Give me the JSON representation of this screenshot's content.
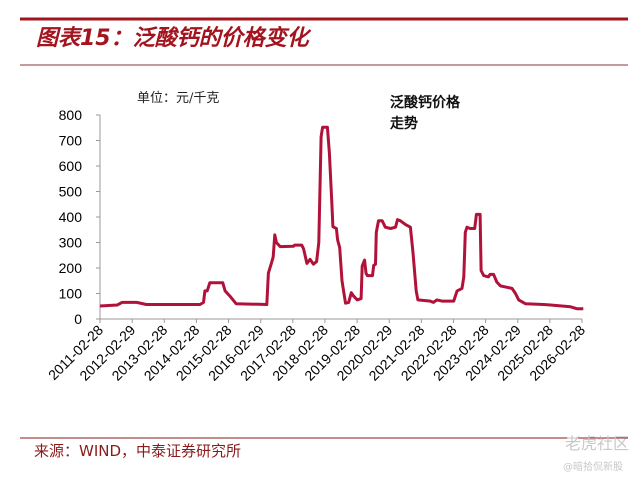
{
  "header": {
    "title": "图表15：泛酸钙的价格变化"
  },
  "footer": {
    "source": "来源：WIND，中泰证券研究所"
  },
  "watermark": {
    "brand": "老虎社区",
    "handle": "@暗拾侃新股"
  },
  "colors": {
    "accent": "#a3141f",
    "series": "#b0123a",
    "axis": "#999999"
  },
  "chart_data": {
    "type": "line",
    "title": "",
    "unit_label": "单位：元/千克",
    "series": [
      {
        "name": "泛酸钙价格走势",
        "points": [
          [
            "2011-02-28",
            51
          ],
          [
            "2011-09-12",
            55
          ],
          [
            "2011-11-05",
            65
          ],
          [
            "2012-04-20",
            65
          ],
          [
            "2012-08-07",
            57
          ],
          [
            "2014-04-10",
            57
          ],
          [
            "2014-05-20",
            65
          ],
          [
            "2014-06-05",
            110
          ],
          [
            "2014-07-01",
            110
          ],
          [
            "2014-07-30",
            142
          ],
          [
            "2014-12-25",
            142
          ],
          [
            "2015-01-20",
            110
          ],
          [
            "2015-03-15",
            90
          ],
          [
            "2015-05-25",
            60
          ],
          [
            "2016-05-08",
            57
          ],
          [
            "2016-05-26",
            180
          ],
          [
            "2016-07-01",
            220
          ],
          [
            "2016-07-20",
            244
          ],
          [
            "2016-08-07",
            330
          ],
          [
            "2016-08-25",
            300
          ],
          [
            "2016-10-08",
            284
          ],
          [
            "2017-03-07",
            285
          ],
          [
            "2017-03-20",
            290
          ],
          [
            "2017-06-10",
            290
          ],
          [
            "2017-07-01",
            275
          ],
          [
            "2017-08-07",
            218
          ],
          [
            "2017-09-12",
            234
          ],
          [
            "2017-10-20",
            215
          ],
          [
            "2017-11-25",
            225
          ],
          [
            "2017-12-20",
            300
          ],
          [
            "2018-01-15",
            715
          ],
          [
            "2018-02-02",
            752
          ],
          [
            "2018-03-28",
            752
          ],
          [
            "2018-04-20",
            650
          ],
          [
            "2018-05-18",
            450
          ],
          [
            "2018-05-30",
            362
          ],
          [
            "2018-07-08",
            355
          ],
          [
            "2018-07-22",
            310
          ],
          [
            "2018-08-15",
            280
          ],
          [
            "2018-09-10",
            150
          ],
          [
            "2018-10-20",
            62
          ],
          [
            "2018-11-25",
            65
          ],
          [
            "2018-12-25",
            103
          ],
          [
            "2019-01-20",
            90
          ],
          [
            "2019-03-03",
            75
          ],
          [
            "2019-04-15",
            80
          ],
          [
            "2019-04-27",
            208
          ],
          [
            "2019-05-25",
            231
          ],
          [
            "2019-06-10",
            180
          ],
          [
            "2019-06-25",
            170
          ],
          [
            "2019-08-22",
            170
          ],
          [
            "2019-09-05",
            210
          ],
          [
            "2019-09-25",
            215
          ],
          [
            "2019-10-05",
            340
          ],
          [
            "2019-10-30",
            385
          ],
          [
            "2019-12-10",
            385
          ],
          [
            "2020-01-15",
            360
          ],
          [
            "2020-03-15",
            355
          ],
          [
            "2020-05-10",
            360
          ],
          [
            "2020-06-02",
            390
          ],
          [
            "2020-07-05",
            385
          ],
          [
            "2020-09-01",
            370
          ],
          [
            "2020-10-27",
            360
          ],
          [
            "2020-11-25",
            260
          ],
          [
            "2021-01-01",
            110
          ],
          [
            "2021-01-20",
            75
          ],
          [
            "2021-06-10",
            70
          ],
          [
            "2021-07-15",
            65
          ],
          [
            "2021-08-25",
            75
          ],
          [
            "2021-10-20",
            70
          ],
          [
            "2022-03-03",
            70
          ],
          [
            "2022-04-10",
            110
          ],
          [
            "2022-06-05",
            120
          ],
          [
            "2022-06-25",
            165
          ],
          [
            "2022-07-12",
            340
          ],
          [
            "2022-08-01",
            360
          ],
          [
            "2022-09-05",
            355
          ],
          [
            "2022-10-27",
            355
          ],
          [
            "2022-11-15",
            410
          ],
          [
            "2022-12-28",
            410
          ],
          [
            "2023-01-08",
            190
          ],
          [
            "2023-02-06",
            170
          ],
          [
            "2023-04-01",
            165
          ],
          [
            "2023-04-20",
            175
          ],
          [
            "2023-05-30",
            175
          ],
          [
            "2023-07-05",
            145
          ],
          [
            "2023-08-15",
            130
          ],
          [
            "2023-12-25",
            120
          ],
          [
            "2024-02-03",
            100
          ],
          [
            "2024-03-10",
            75
          ],
          [
            "2024-05-25",
            60
          ],
          [
            "2024-12-20",
            57
          ],
          [
            "2025-03-07",
            55
          ],
          [
            "2025-10-20",
            48
          ],
          [
            "2026-01-05",
            40
          ],
          [
            "2026-03-15",
            40
          ]
        ]
      }
    ],
    "x_ticks": [
      "2011-02-28",
      "2012-02-29",
      "2013-02-28",
      "2014-02-28",
      "2015-02-28",
      "2016-02-29",
      "2017-02-28",
      "2018-02-28",
      "2019-02-28",
      "2020-02-29",
      "2021-02-28",
      "2022-02-28",
      "2023-02-28",
      "2024-02-29",
      "2025-02-28",
      "2026-02-28"
    ],
    "y_ticks": [
      0,
      100,
      200,
      300,
      400,
      500,
      600,
      700,
      800
    ],
    "ylim": [
      0,
      800
    ],
    "xlim": [
      "2011-02-28",
      "2026-02-28"
    ],
    "grid": false,
    "legend_placement": "top-center"
  }
}
